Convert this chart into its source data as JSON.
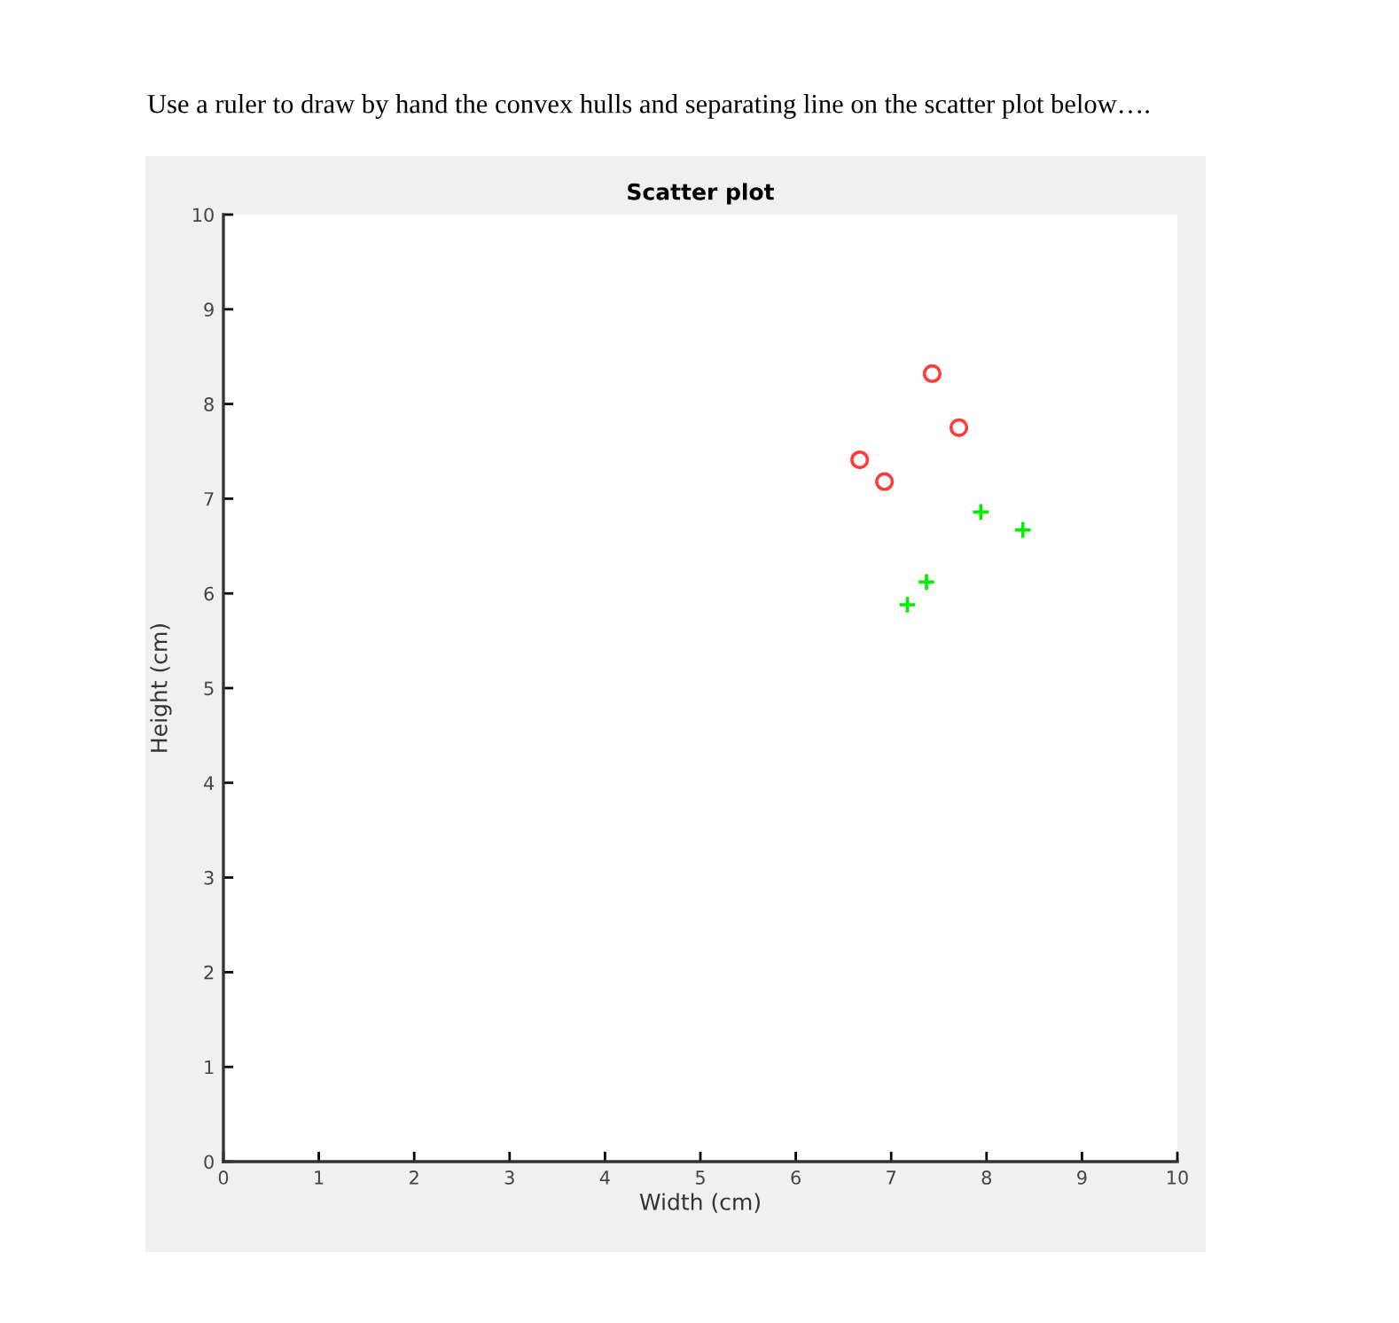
{
  "chart_data": {
    "type": "scatter",
    "title": "Scatter plot",
    "xlabel": "Width (cm)",
    "ylabel": "Height (cm)",
    "annotations": [
      "Use a ruler to draw by hand the convex hulls and separating line on the scatter plot below…."
    ],
    "series": [
      {
        "color": "#ff3b3b",
        "marker": "circle",
        "x": [
          7.43,
          7.71,
          6.67,
          6.93
        ],
        "values": [
          8.32,
          7.75,
          7.41,
          7.18
        ]
      },
      {
        "color": "#00ee00",
        "marker": "cross",
        "x": [
          7.94,
          8.38,
          7.37,
          7.17
        ],
        "values": [
          6.86,
          6.67,
          6.12,
          5.88
        ]
      }
    ],
    "xlim": [
      0,
      10
    ],
    "ylim": [
      0,
      10
    ],
    "xticks": [
      0,
      1,
      2,
      3,
      4,
      5,
      6,
      7,
      8,
      9,
      10
    ],
    "yticks": [
      0,
      1,
      2,
      3,
      4,
      5,
      6,
      7,
      8,
      9,
      10
    ],
    "grid": false,
    "legend": false
  }
}
